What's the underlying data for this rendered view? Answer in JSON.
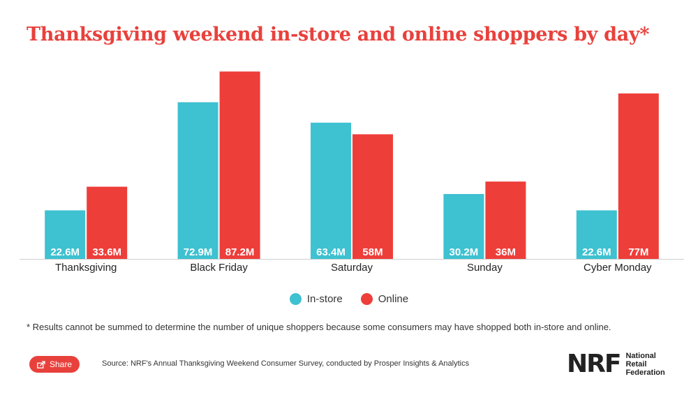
{
  "title": "Thanksgiving weekend in-store and online shoppers by day*",
  "legend": {
    "instore": "In-store",
    "online": "Online"
  },
  "colors": {
    "instore": "#3ec1d0",
    "online": "#ee3e3a",
    "title": "#e8413c"
  },
  "footnote": "* Results cannot be summed to determine the number of unique shoppers because some consumers may have shopped both in-store and online.",
  "share_label": "Share",
  "share_icon": "share-icon",
  "source": "Source: NRF's Annual Thanksgiving Weekend Consumer Survey, conducted by Prosper Insights & Analytics",
  "logo": {
    "mark": "NRF",
    "lines": [
      "National",
      "Retail",
      "Federation"
    ]
  },
  "chart_data": {
    "type": "bar",
    "categories": [
      "Thanksgiving",
      "Black Friday",
      "Saturday",
      "Sunday",
      "Cyber Monday"
    ],
    "series": [
      {
        "name": "In-store",
        "values": [
          22.6,
          72.9,
          63.4,
          30.2,
          22.6
        ],
        "labels": [
          "22.6M",
          "72.9M",
          "63.4M",
          "30.2M",
          "22.6M"
        ]
      },
      {
        "name": "Online",
        "values": [
          33.6,
          87.2,
          58,
          36,
          77
        ],
        "labels": [
          "33.6M",
          "87.2M",
          "58M",
          "36M",
          "77M"
        ]
      }
    ],
    "ylim": [
      0,
      88
    ],
    "xlabel": "",
    "ylabel": "",
    "grid": false,
    "legend_position": "bottom-center"
  }
}
